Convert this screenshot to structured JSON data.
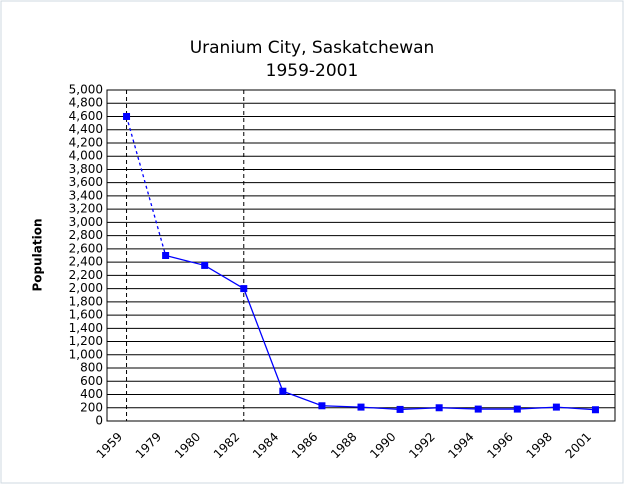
{
  "chart_data": {
    "type": "line",
    "title": "Uranium City, Saskatchewan",
    "subtitle": "1959-2001",
    "y_label": "Population",
    "categories": [
      "1959",
      "1979",
      "1980",
      "1982",
      "1984",
      "1986",
      "1988",
      "1990",
      "1992",
      "1994",
      "1996",
      "1998",
      "2001"
    ],
    "series": [
      {
        "name": "Population",
        "color": "#0000ff",
        "values": [
          4600,
          2500,
          2350,
          2000,
          450,
          230,
          210,
          175,
          200,
          180,
          180,
          210,
          170
        ]
      }
    ],
    "ylim": [
      0,
      5000
    ],
    "yticks": [
      {
        "value": 5000,
        "label": "5,000"
      },
      {
        "value": 4800,
        "label": "4,800"
      },
      {
        "value": 4600,
        "label": "4,600"
      },
      {
        "value": 4400,
        "label": "4,400"
      },
      {
        "value": 4200,
        "label": "4,200"
      },
      {
        "value": 4000,
        "label": "4,000"
      },
      {
        "value": 3800,
        "label": "3,800"
      },
      {
        "value": 3600,
        "label": "3,600"
      },
      {
        "value": 3400,
        "label": "3,400"
      },
      {
        "value": 3200,
        "label": "3,200"
      },
      {
        "value": 3000,
        "label": "3,000"
      },
      {
        "value": 2800,
        "label": "2,800"
      },
      {
        "value": 2600,
        "label": "2,600"
      },
      {
        "value": 2400,
        "label": "2,400"
      },
      {
        "value": 2200,
        "label": "2,200"
      },
      {
        "value": 2000,
        "label": "2,000"
      },
      {
        "value": 1800,
        "label": "1,800"
      },
      {
        "value": 1600,
        "label": "1,600"
      },
      {
        "value": 1400,
        "label": "1,400"
      },
      {
        "value": 1200,
        "label": "1,200"
      },
      {
        "value": 1000,
        "label": "1,000"
      },
      800,
      600,
      400,
      200,
      0
    ],
    "grid": true
  }
}
